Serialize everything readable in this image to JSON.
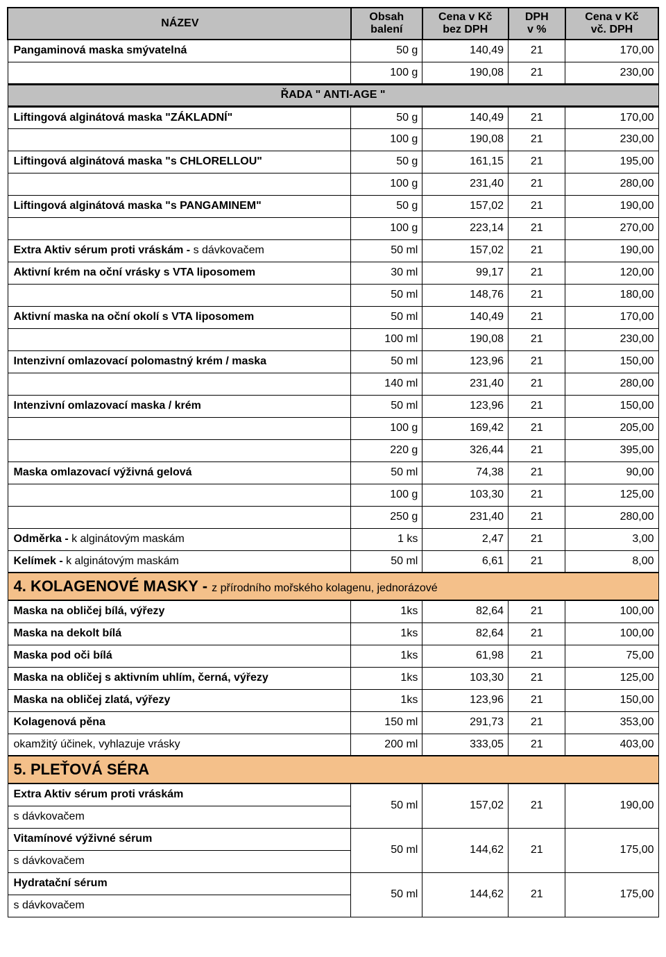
{
  "colors": {
    "header_bg": "#c0c0c0",
    "category_bg": "#f4c08a",
    "border": "#000000",
    "bg": "#ffffff"
  },
  "headers": {
    "name": "NÁZEV",
    "pack1": "Obsah",
    "pack2": "balení",
    "price1": "Cena v Kč",
    "price2": "bez DPH",
    "vat1": "DPH",
    "vat2": "v %",
    "total1": "Cena v Kč",
    "total2": "vč. DPH"
  },
  "rows": [
    {
      "type": "data",
      "name": "Pangaminová maska smývatelná",
      "name_bold": true,
      "pack": "50 g",
      "price": "140,49",
      "vat": "21",
      "total": "170,00",
      "top": true
    },
    {
      "type": "data",
      "name": "",
      "pack": "100 g",
      "price": "190,08",
      "vat": "21",
      "total": "230,00"
    },
    {
      "type": "section",
      "label": "ŘADA     \" ANTI-AGE \""
    },
    {
      "type": "data",
      "name": "Liftingová alginátová maska   \"ZÁKLADNÍ\"",
      "name_bold": true,
      "pack": "50 g",
      "price": "140,49",
      "vat": "21",
      "total": "170,00"
    },
    {
      "type": "data",
      "name": "",
      "pack": "100 g",
      "price": "190,08",
      "vat": "21",
      "total": "230,00"
    },
    {
      "type": "data",
      "name": "Liftingová alginátová maska   \"s CHLORELLOU\"",
      "name_bold": true,
      "pack": "50 g",
      "price": "161,15",
      "vat": "21",
      "total": "195,00"
    },
    {
      "type": "data",
      "name": "",
      "pack": "100 g",
      "price": "231,40",
      "vat": "21",
      "total": "280,00"
    },
    {
      "type": "data",
      "name": "Liftingová alginátová maska   \"s PANGAMINEM\"",
      "name_bold": true,
      "pack": "50 g",
      "price": "157,02",
      "vat": "21",
      "total": "190,00"
    },
    {
      "type": "data",
      "name": "",
      "pack": "100 g",
      "price": "223,14",
      "vat": "21",
      "total": "270,00"
    },
    {
      "type": "data",
      "name_html": "<b>Extra Aktiv sérum proti vráskám - </b>s dávkovačem",
      "pack": "50 ml",
      "price": "157,02",
      "vat": "21",
      "total": "190,00"
    },
    {
      "type": "data",
      "name": "Aktivní krém na oční vrásky s VTA liposomem",
      "name_bold": true,
      "pack": "30 ml",
      "price": "99,17",
      "vat": "21",
      "total": "120,00"
    },
    {
      "type": "data",
      "name": "",
      "pack": "50 ml",
      "price": "148,76",
      "vat": "21",
      "total": "180,00"
    },
    {
      "type": "data",
      "name": "Aktivní maska na oční okolí s VTA liposomem",
      "name_bold": true,
      "pack": "50 ml",
      "price": "140,49",
      "vat": "21",
      "total": "170,00"
    },
    {
      "type": "data",
      "name": "",
      "pack": "100 ml",
      "price": "190,08",
      "vat": "21",
      "total": "230,00"
    },
    {
      "type": "data",
      "name": "Intenzivní omlazovací polomastný krém / maska",
      "name_bold": true,
      "pack": "50 ml",
      "price": "123,96",
      "vat": "21",
      "total": "150,00"
    },
    {
      "type": "data",
      "name": "",
      "pack": "140 ml",
      "price": "231,40",
      "vat": "21",
      "total": "280,00"
    },
    {
      "type": "data",
      "name": "Intenzivní omlazovací maska / krém",
      "name_bold": true,
      "pack": "50 ml",
      "price": "123,96",
      "vat": "21",
      "total": "150,00"
    },
    {
      "type": "data",
      "name": "",
      "pack": "100 g",
      "price": "169,42",
      "vat": "21",
      "total": "205,00"
    },
    {
      "type": "data",
      "name": "",
      "pack": "220 g",
      "price": "326,44",
      "vat": "21",
      "total": "395,00"
    },
    {
      "type": "data",
      "name": "Maska omlazovací výživná gelová",
      "name_bold": true,
      "pack": "50 ml",
      "price": "74,38",
      "vat": "21",
      "total": "90,00"
    },
    {
      "type": "data",
      "name": "",
      "pack": "100 g",
      "price": "103,30",
      "vat": "21",
      "total": "125,00"
    },
    {
      "type": "data",
      "name": "",
      "pack": "250 g",
      "price": "231,40",
      "vat": "21",
      "total": "280,00"
    },
    {
      "type": "data",
      "name_html": "<b>Odměrka - </b>k alginátovým maskám",
      "pack": "1 ks",
      "price": "2,47",
      "vat": "21",
      "total": "3,00"
    },
    {
      "type": "data",
      "name_html": "<b>Kelímek - </b>k alginátovým maskám",
      "pack": "50 ml",
      "price": "6,61",
      "vat": "21",
      "total": "8,00"
    },
    {
      "type": "category",
      "title": "4. KOLAGENOVÉ MASKY - ",
      "subtitle": "z přírodního mořského kolagenu, jednorázové"
    },
    {
      "type": "data",
      "name": "Maska na obličej bílá, výřezy",
      "name_bold": true,
      "pack": "1ks",
      "price": "82,64",
      "vat": "21",
      "total": "100,00"
    },
    {
      "type": "data",
      "name": "Maska na dekolt bílá",
      "name_bold": true,
      "pack": "1ks",
      "price": "82,64",
      "vat": "21",
      "total": "100,00"
    },
    {
      "type": "data",
      "name": "Maska pod oči bílá",
      "name_bold": true,
      "pack": "1ks",
      "price": "61,98",
      "vat": "21",
      "total": "75,00"
    },
    {
      "type": "data",
      "name": "Maska na obličej s aktivním uhlím, černá, výřezy",
      "name_bold": true,
      "pack": "1ks",
      "price": "103,30",
      "vat": "21",
      "total": "125,00"
    },
    {
      "type": "data",
      "name": "Maska na obličej zlatá, výřezy",
      "name_bold": true,
      "pack": "1ks",
      "price": "123,96",
      "vat": "21",
      "total": "150,00"
    },
    {
      "type": "data",
      "name": "Kolagenová pěna",
      "name_bold": true,
      "pack": "150 ml",
      "price": "291,73",
      "vat": "21",
      "total": "353,00"
    },
    {
      "type": "data",
      "name": "okamžitý účinek, vyhlazuje vrásky",
      "pack": "200 ml",
      "price": "333,05",
      "vat": "21",
      "total": "403,00"
    },
    {
      "type": "category",
      "title": "5. PLEŤOVÁ SÉRA",
      "subtitle": ""
    },
    {
      "type": "merge2",
      "name1": "Extra Aktiv sérum proti vráskám",
      "name1_bold": true,
      "name2": "s dávkovačem",
      "pack": "50 ml",
      "price": "157,02",
      "vat": "21",
      "total": "190,00"
    },
    {
      "type": "merge2",
      "name1": "Vitamínové výživné sérum",
      "name1_bold": true,
      "name2": "s dávkovačem",
      "pack": "50 ml",
      "price": "144,62",
      "vat": "21",
      "total": "175,00"
    },
    {
      "type": "merge2",
      "name1": "Hydratační sérum",
      "name1_bold": true,
      "name2": "s dávkovačem",
      "pack": "50 ml",
      "price": "144,62",
      "vat": "21",
      "total": "175,00"
    }
  ]
}
